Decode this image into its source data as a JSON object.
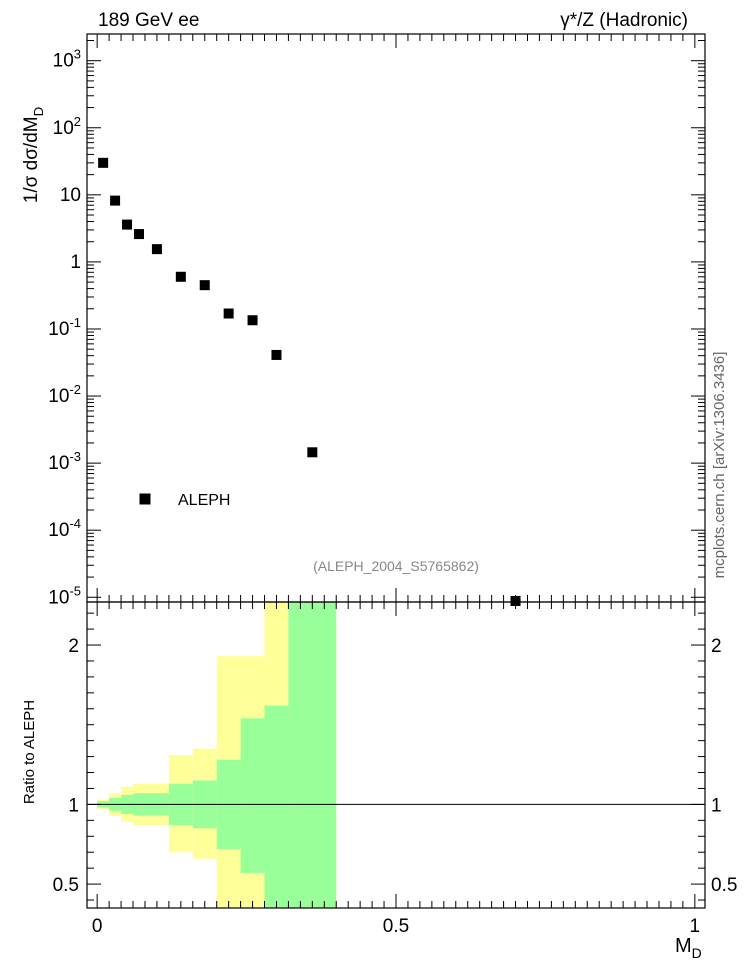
{
  "header": {
    "left_label": "189 GeV ee",
    "right_label": "γ*/Z (Hadronic)"
  },
  "side_label": "mcplots.cern.ch [arXiv:1306.3436]",
  "analysis_label": "(ALEPH_2004_S5765862)",
  "chart_data": [
    {
      "type": "scatter",
      "panel": "main",
      "ylabel": "1/σ dσ/dM_D",
      "yscale": "log",
      "ylim": [
        8.5e-06,
        2500
      ],
      "xlim": [
        -0.017,
        1.017
      ],
      "y_ticks": [
        {
          "value": 1e-05,
          "label": "10^-5"
        },
        {
          "value": 0.0001,
          "label": "10^-4"
        },
        {
          "value": 0.001,
          "label": "10^-3"
        },
        {
          "value": 0.01,
          "label": "10^-2"
        },
        {
          "value": 0.1,
          "label": "10^-1"
        },
        {
          "value": 1,
          "label": "1"
        },
        {
          "value": 10,
          "label": "10"
        },
        {
          "value": 100,
          "label": "10^2"
        },
        {
          "value": 1000,
          "label": "10^3"
        }
      ],
      "legend": [
        {
          "name": "ALEPH",
          "marker": "square",
          "color": "#000000"
        }
      ],
      "legend_position": "bottom-left",
      "series": [
        {
          "name": "ALEPH",
          "color": "#000000",
          "x": [
            0.01,
            0.03,
            0.05,
            0.07,
            0.1,
            0.14,
            0.18,
            0.22,
            0.26,
            0.3,
            0.36,
            0.7
          ],
          "y": [
            30,
            8.2,
            3.6,
            2.6,
            1.55,
            0.6,
            0.45,
            0.17,
            0.135,
            0.041,
            0.00145,
            8.2e-06
          ]
        }
      ]
    },
    {
      "type": "area",
      "panel": "ratio",
      "ylabel": "Ratio to ALEPH",
      "xlabel": "M_D",
      "ylim": [
        0.35,
        2.27
      ],
      "xlim": [
        -0.017,
        1.017
      ],
      "x_ticks": [
        {
          "value": 0,
          "label": "0"
        },
        {
          "value": 0.5,
          "label": "0.5"
        },
        {
          "value": 1,
          "label": "1"
        }
      ],
      "y_ticks": [
        {
          "value": 0.5,
          "label": "0.5"
        },
        {
          "value": 1,
          "label": "1"
        },
        {
          "value": 2,
          "label": "2"
        }
      ],
      "reference_line": 1,
      "bins": [
        0,
        0.02,
        0.04,
        0.06,
        0.08,
        0.12,
        0.16,
        0.2,
        0.24,
        0.28,
        0.32,
        0.4
      ],
      "bands": [
        {
          "name": "stat+syst (yellow)",
          "color": "#ffff99",
          "low": [
            0.97,
            0.93,
            0.89,
            0.87,
            0.87,
            0.7,
            0.66,
            0.35,
            0.35,
            0.35,
            0.35
          ],
          "high": [
            1.03,
            1.07,
            1.11,
            1.13,
            1.13,
            1.31,
            1.35,
            1.93,
            1.93,
            2.27,
            2.27
          ]
        },
        {
          "name": "stat (green)",
          "color": "#99ff99",
          "low": [
            0.98,
            0.96,
            0.94,
            0.93,
            0.93,
            0.87,
            0.85,
            0.72,
            0.57,
            0.35,
            0.35
          ],
          "high": [
            1.02,
            1.04,
            1.06,
            1.07,
            1.07,
            1.13,
            1.15,
            1.28,
            1.54,
            1.62,
            2.27
          ]
        }
      ]
    }
  ]
}
